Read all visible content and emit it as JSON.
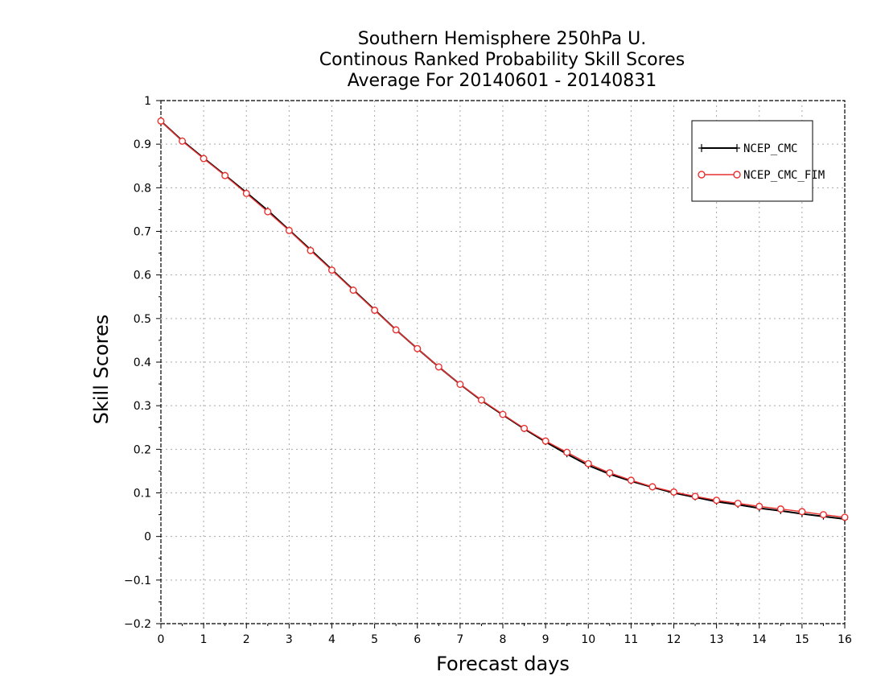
{
  "chart_data": {
    "type": "line",
    "title": [
      "Southern Hemisphere 250hPa U.",
      "Continous Ranked Probability Skill Scores",
      "Average For 20140601 - 20140831"
    ],
    "xlabel": "Forecast days",
    "ylabel": "Skill Scores",
    "xlim": [
      0,
      16
    ],
    "ylim": [
      -0.2,
      1
    ],
    "x_ticks": [
      "0",
      "1",
      "2",
      "3",
      "4",
      "5",
      "6",
      "7",
      "8",
      "9",
      "10",
      "11",
      "12",
      "13",
      "14",
      "15",
      "16"
    ],
    "y_ticks": [
      "-0.2",
      "-0.1",
      "0",
      "0.1",
      "0.2",
      "0.3",
      "0.4",
      "0.5",
      "0.6",
      "0.7",
      "0.8",
      "0.9",
      "1"
    ],
    "grid": true,
    "legend_position": "top-right",
    "x": [
      0,
      0.5,
      1,
      1.5,
      2,
      2.5,
      3,
      3.5,
      4,
      4.5,
      5,
      5.5,
      6,
      6.5,
      7,
      7.5,
      8,
      8.5,
      9,
      9.5,
      10,
      10.5,
      11,
      11.5,
      12,
      12.5,
      13,
      13.5,
      14,
      14.5,
      15,
      15.5,
      16
    ],
    "series": [
      {
        "name": "NCEP_CMC",
        "color": "#000000",
        "marker": "plus",
        "values": [
          0.953,
          0.908,
          0.868,
          0.829,
          0.789,
          0.748,
          0.703,
          0.658,
          0.612,
          0.566,
          0.52,
          0.474,
          0.431,
          0.389,
          0.349,
          0.312,
          0.279,
          0.247,
          0.217,
          0.189,
          0.163,
          0.143,
          0.127,
          0.113,
          0.1,
          0.09,
          0.08,
          0.073,
          0.065,
          0.059,
          0.052,
          0.046,
          0.04
        ]
      },
      {
        "name": "NCEP_CMC_FIM",
        "color": "#e8312f",
        "marker": "circle",
        "values": [
          0.953,
          0.907,
          0.867,
          0.828,
          0.787,
          0.745,
          0.702,
          0.656,
          0.611,
          0.565,
          0.519,
          0.474,
          0.431,
          0.389,
          0.349,
          0.313,
          0.28,
          0.248,
          0.219,
          0.193,
          0.167,
          0.146,
          0.129,
          0.114,
          0.102,
          0.092,
          0.083,
          0.076,
          0.069,
          0.063,
          0.057,
          0.05,
          0.044
        ]
      }
    ]
  }
}
